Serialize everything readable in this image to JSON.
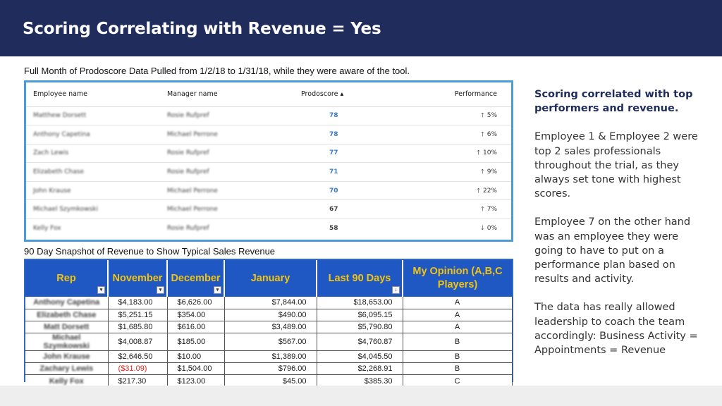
{
  "slide": {
    "title": "Scoring Correlating with Revenue = Yes",
    "caption_top": "Full Month of Prodoscore Data Pulled from 1/2/18 to 1/31/18, while they were aware of the tool.",
    "caption_mid": "90 Day Snapshot of Revenue to Show Typical Sales Revenue"
  },
  "prodoscore": {
    "headers": {
      "employee": "Employee name",
      "manager": "Manager name",
      "score": "Prodoscore ▴",
      "performance": "Performance"
    },
    "rows": [
      {
        "employee": "Matthew Dorsett",
        "manager": "Rosie Rufpref",
        "score": "78",
        "perf": "5%",
        "dir": "up"
      },
      {
        "employee": "Anthony Capetina",
        "manager": "Michael Perrone",
        "score": "78",
        "perf": "6%",
        "dir": "up"
      },
      {
        "employee": "Zach Lewis",
        "manager": "Rosie Rufpref",
        "score": "77",
        "perf": "10%",
        "dir": "up"
      },
      {
        "employee": "Elizabeth Chase",
        "manager": "Rosie Rufpref",
        "score": "71",
        "perf": "9%",
        "dir": "up"
      },
      {
        "employee": "John Krause",
        "manager": "Michael Perrone",
        "score": "70",
        "perf": "22%",
        "dir": "up"
      },
      {
        "employee": "Michael Szymkowski",
        "manager": "Michael Perrone",
        "score": "67",
        "perf": "7%",
        "dir": "up"
      },
      {
        "employee": "Kelly Fox",
        "manager": "Rosie Rufpref",
        "score": "58",
        "perf": "0%",
        "dir": "down"
      }
    ]
  },
  "revenue": {
    "headers": {
      "rep": "Rep",
      "november": "November",
      "december": "December",
      "january": "January",
      "last90": "Last 90 Days",
      "opinion": "My Opinion (A,B,C Players)"
    },
    "rows": [
      {
        "rep": "Anthony Capetina",
        "nov": "$4,183.00",
        "dec": "$6,626.00",
        "jan": "$7,844.00",
        "last90": "$18,653.00",
        "grade": "A"
      },
      {
        "rep": "Elizabeth Chase",
        "nov": "$5,251.15",
        "dec": "$354.00",
        "jan": "$490.00",
        "last90": "$6,095.15",
        "grade": "A"
      },
      {
        "rep": "Matt Dorsett",
        "nov": "$1,685.80",
        "dec": "$616.00",
        "jan": "$3,489.00",
        "last90": "$5,790.80",
        "grade": "A"
      },
      {
        "rep": "Michael Szymkowski",
        "nov": "$4,008.87",
        "dec": "$185.00",
        "jan": "$567.00",
        "last90": "$4,760.87",
        "grade": "B"
      },
      {
        "rep": "John Krause",
        "nov": "$2,646.50",
        "dec": "$10.00",
        "jan": "$1,389.00",
        "last90": "$4,045.50",
        "grade": "B"
      },
      {
        "rep": "Zachary Lewis",
        "nov": "($31.09)",
        "dec": "$1,504.00",
        "jan": "$796.00",
        "last90": "$2,268.91",
        "grade": "B"
      },
      {
        "rep": "Kelly Fox",
        "nov": "$217.30",
        "dec": "$123.00",
        "jan": "$45.00",
        "last90": "$385.30",
        "grade": "C"
      }
    ]
  },
  "side": {
    "heading": "Scoring correlated with top performers and revenue.",
    "para1": "Employee 1 & Employee 2 were top 2 sales professionals throughout the trial, as they always set tone with highest scores.",
    "para2": "Employee 7 on the other hand was  an employee they were going to have to put on a performance plan based on results and activity.",
    "para3": "The data has really allowed leadership to coach the team accordingly: Business Activity = Appointments = Revenue"
  },
  "colors": {
    "header_bg": "#1f2c5c",
    "accent_blue": "#3a7cc4",
    "down_red": "#d9403b",
    "rev_header_bg": "#1f57c3",
    "rev_header_text": "#f2c40f"
  },
  "icons": {
    "up": "arrow-up-icon",
    "down": "arrow-down-icon"
  }
}
